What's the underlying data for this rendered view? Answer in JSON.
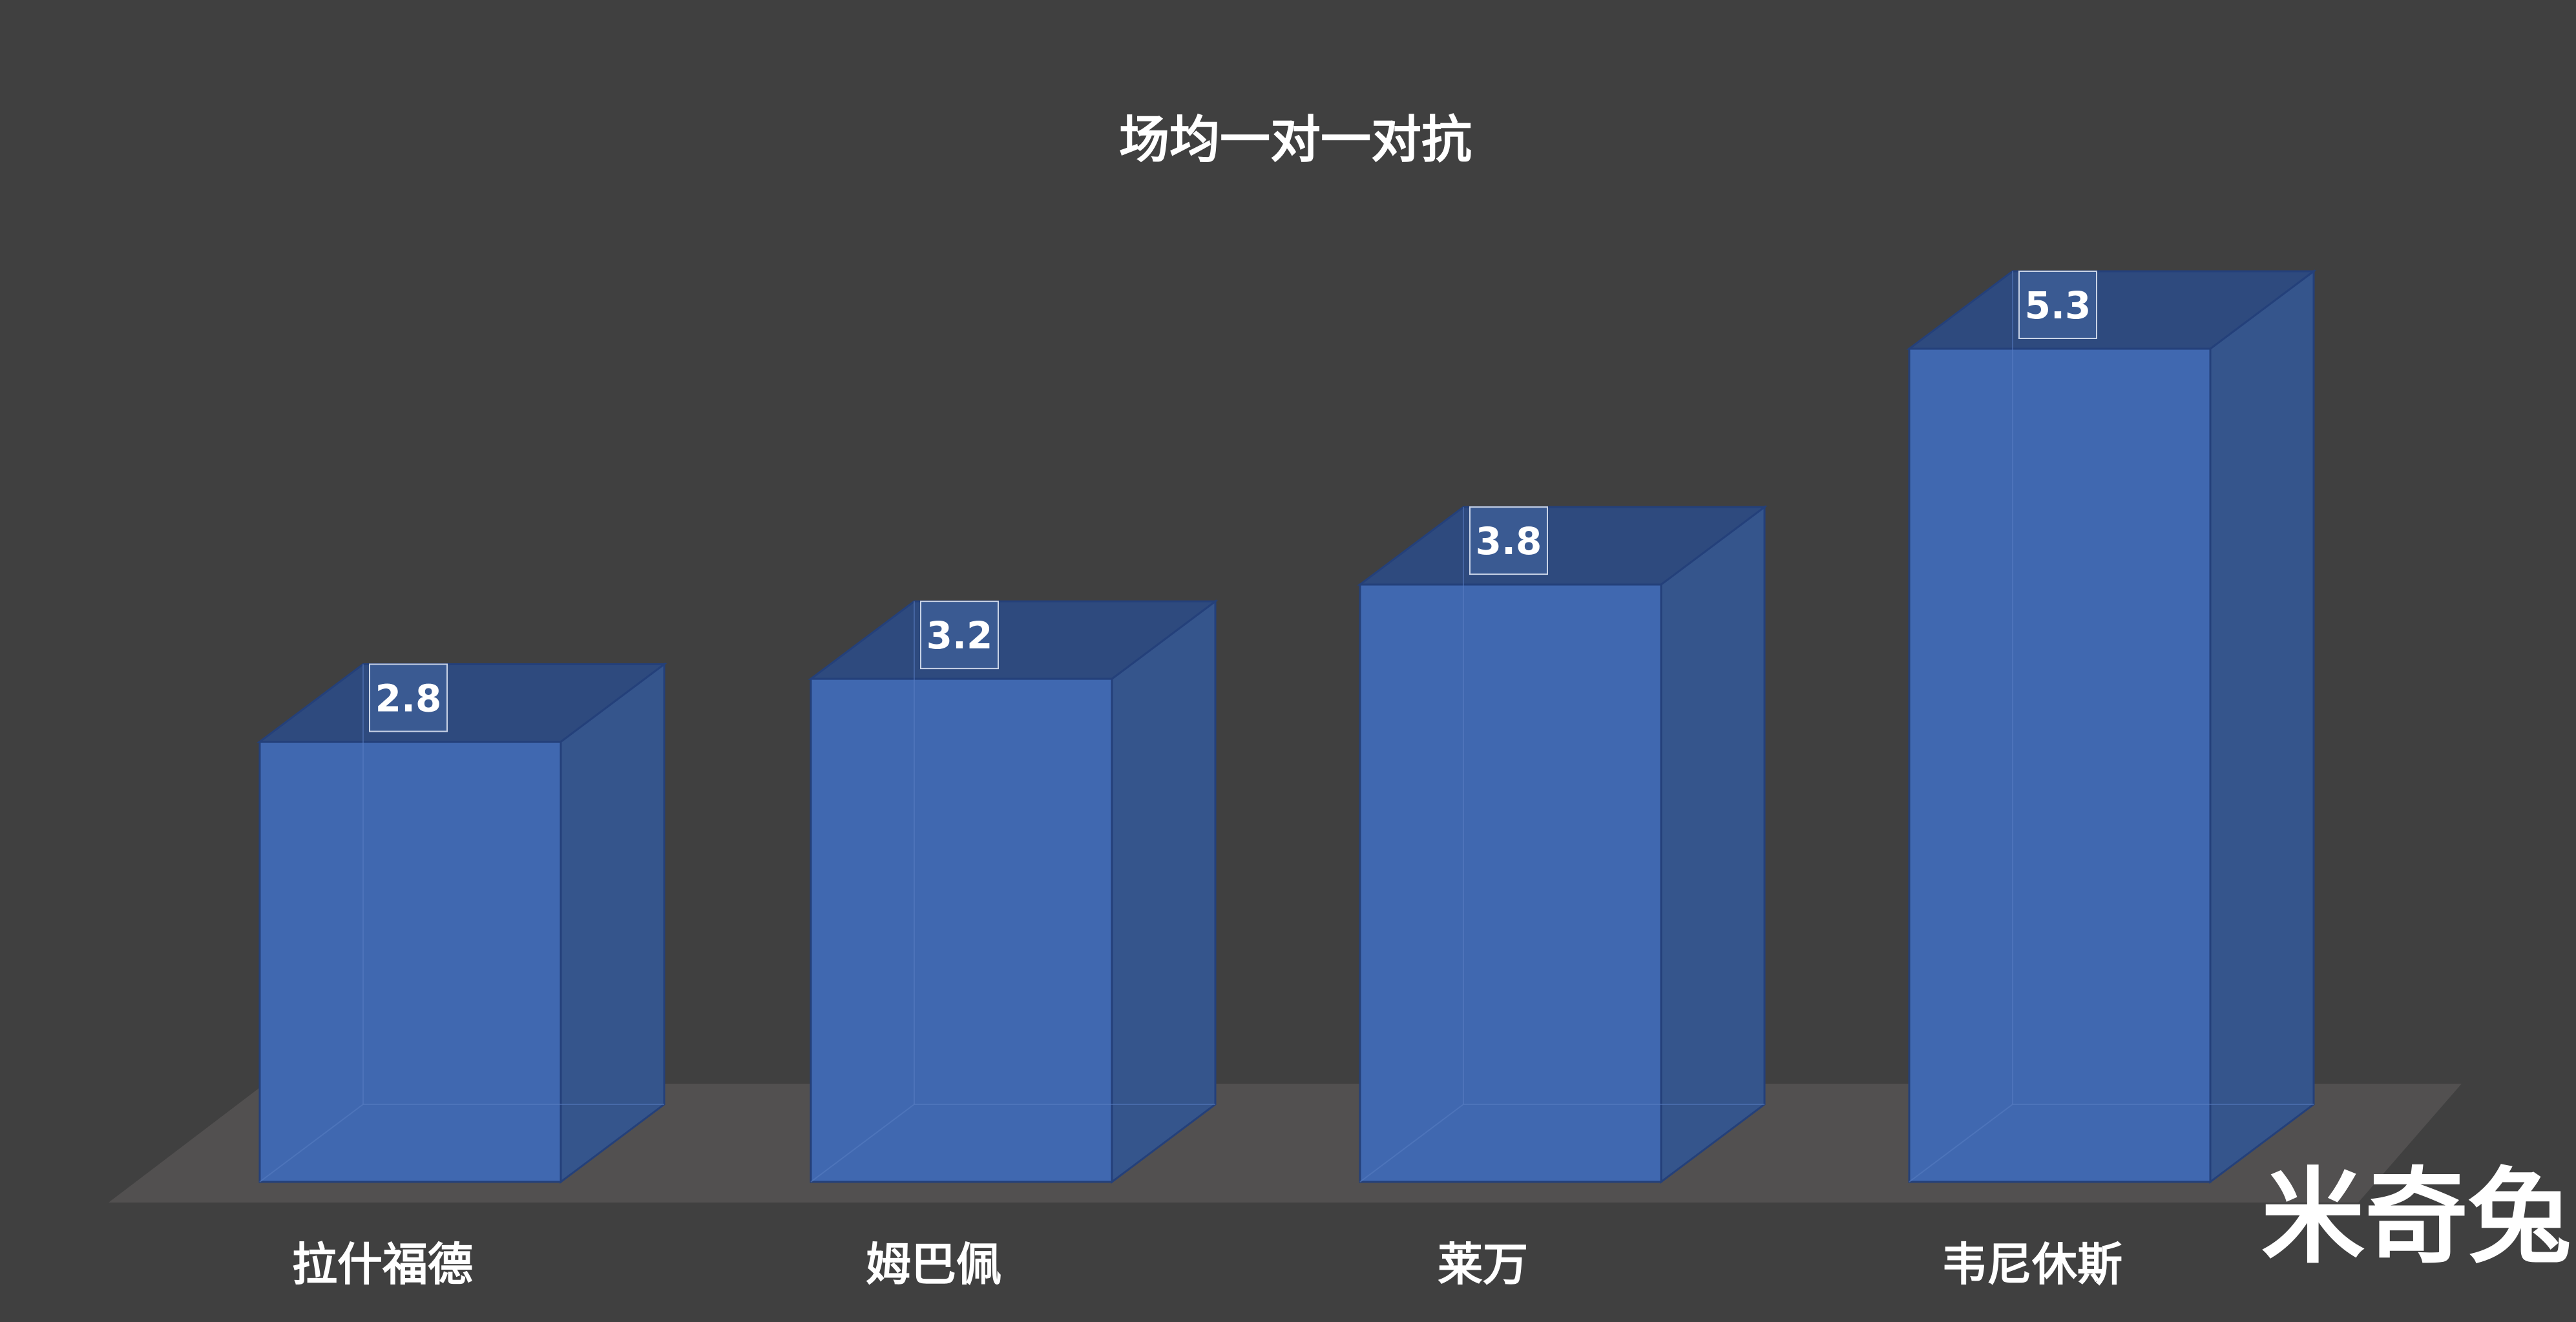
{
  "chart_data": {
    "type": "bar",
    "title": "场均一对一对抗",
    "categories": [
      "拉什福德",
      "姆巴佩",
      "莱万",
      "韦尼休斯"
    ],
    "values": [
      2.8,
      3.2,
      3.8,
      5.3
    ],
    "xlabel": "",
    "ylabel": "",
    "ylim": [
      0,
      5.3
    ],
    "grid": false,
    "legend": "none",
    "style": "3d-column"
  },
  "watermark": "米奇兔",
  "colors": {
    "background": "#404040",
    "floor": "#525050",
    "bar_front": "#4068b0",
    "bar_side": "#35558c",
    "bar_top": "#2e4a7e",
    "bar_edge": "#24407a",
    "text": "#ffffff"
  }
}
